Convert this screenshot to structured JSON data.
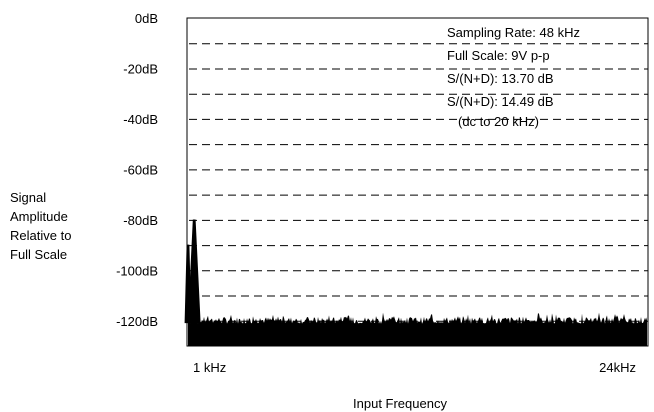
{
  "chart_data": {
    "type": "line",
    "title": "",
    "xlabel": "Input Frequency",
    "ylabel_lines": [
      "Signal",
      "Amplitude",
      "Relative to",
      "Full Scale"
    ],
    "ylim": [
      -130,
      0
    ],
    "y_ticks": [
      {
        "value": 0,
        "label": "0dB"
      },
      {
        "value": -20,
        "label": "-20dB"
      },
      {
        "value": -40,
        "label": "-40dB"
      },
      {
        "value": -60,
        "label": "-60dB"
      },
      {
        "value": -80,
        "label": "-80dB"
      },
      {
        "value": -100,
        "label": "-100dB"
      },
      {
        "value": -120,
        "label": "-120dB"
      }
    ],
    "y_gridlines": [
      -10,
      -20,
      -30,
      -40,
      -50,
      -60,
      -70,
      -80,
      -90,
      -100,
      -110,
      -120
    ],
    "grid_style": "dashed",
    "xlim_khz": [
      0,
      24
    ],
    "x_ticks": [
      {
        "value_khz": 1,
        "label": "1 kHz"
      },
      {
        "value_khz": 24,
        "label": "24kHz"
      }
    ],
    "annotations": [
      "Sampling Rate: 48 kHz",
      "Full Scale: 9V p-p",
      "S/(N+D): 13.70 dB",
      "S/(N+D): 14.49 dB",
      "(dc to 20 kHz)"
    ],
    "annotation_placement": "top-right",
    "series": [
      {
        "color": "#000000",
        "noise_floor_db": -120,
        "peaks": [
          {
            "freq_khz": 0.0,
            "db": -90
          },
          {
            "freq_khz": 1.0,
            "db": -80
          }
        ]
      }
    ]
  }
}
